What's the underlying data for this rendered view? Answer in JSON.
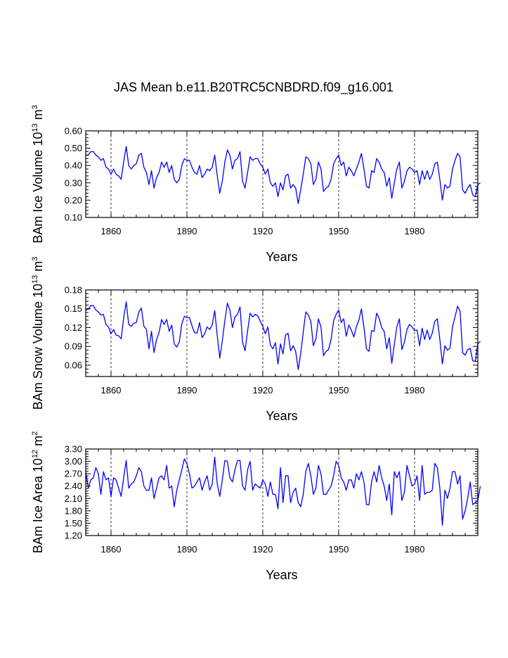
{
  "title": "JAS Mean b.e11.B20TRC5CNBDRD.f09_g16.001",
  "line_color": "#0000ff",
  "chart_data": [
    {
      "type": "line",
      "title": "",
      "xlabel": "Years",
      "ylabel_main": "BAm Ice Volume 10",
      "ylabel_sup": "13",
      "ylabel_unit": "m",
      "ylabel_unit_sup": "3",
      "xlim": [
        1850,
        2005
      ],
      "ylim": [
        0.1,
        0.6
      ],
      "xticks": [
        1860,
        1890,
        1920,
        1950,
        1980
      ],
      "xtick_labels": [
        "1860",
        "1890",
        "1920",
        "1950",
        "1980"
      ],
      "yticks": [
        0.1,
        0.2,
        0.3,
        0.4,
        0.5,
        0.6
      ],
      "ytick_labels": [
        "0.10",
        "0.20",
        "0.30",
        "0.40",
        "0.50",
        "0.60"
      ],
      "x_start": 1850,
      "values": [
        0.46,
        0.46,
        0.48,
        0.48,
        0.46,
        0.45,
        0.43,
        0.44,
        0.39,
        0.38,
        0.35,
        0.38,
        0.35,
        0.34,
        0.32,
        0.42,
        0.51,
        0.4,
        0.38,
        0.4,
        0.41,
        0.46,
        0.47,
        0.39,
        0.36,
        0.29,
        0.37,
        0.27,
        0.33,
        0.36,
        0.42,
        0.39,
        0.42,
        0.36,
        0.4,
        0.32,
        0.3,
        0.32,
        0.4,
        0.44,
        0.43,
        0.43,
        0.39,
        0.36,
        0.35,
        0.4,
        0.33,
        0.35,
        0.38,
        0.37,
        0.39,
        0.46,
        0.34,
        0.24,
        0.31,
        0.42,
        0.49,
        0.46,
        0.38,
        0.43,
        0.44,
        0.48,
        0.31,
        0.27,
        0.36,
        0.45,
        0.43,
        0.44,
        0.44,
        0.41,
        0.39,
        0.35,
        0.38,
        0.3,
        0.28,
        0.3,
        0.22,
        0.3,
        0.26,
        0.34,
        0.35,
        0.27,
        0.29,
        0.27,
        0.18,
        0.26,
        0.35,
        0.45,
        0.44,
        0.41,
        0.29,
        0.32,
        0.42,
        0.38,
        0.25,
        0.27,
        0.28,
        0.32,
        0.41,
        0.44,
        0.46,
        0.4,
        0.42,
        0.34,
        0.39,
        0.37,
        0.34,
        0.38,
        0.42,
        0.47,
        0.38,
        0.28,
        0.27,
        0.37,
        0.36,
        0.44,
        0.42,
        0.38,
        0.36,
        0.28,
        0.33,
        0.21,
        0.3,
        0.38,
        0.42,
        0.27,
        0.31,
        0.37,
        0.39,
        0.38,
        0.36,
        0.37,
        0.29,
        0.37,
        0.32,
        0.37,
        0.32,
        0.35,
        0.41,
        0.42,
        0.32,
        0.2,
        0.29,
        0.27,
        0.28,
        0.38,
        0.43,
        0.47,
        0.45,
        0.26,
        0.24,
        0.27,
        0.29,
        0.23,
        0.22,
        0.29,
        0.3
      ]
    },
    {
      "type": "line",
      "title": "",
      "xlabel": "Years",
      "ylabel_main": "BAm Snow Volume 10",
      "ylabel_sup": "13",
      "ylabel_unit": "m",
      "ylabel_unit_sup": "3",
      "xlim": [
        1850,
        2005
      ],
      "ylim": [
        0.042,
        0.18
      ],
      "xticks": [
        1860,
        1890,
        1920,
        1950,
        1980
      ],
      "xtick_labels": [
        "1860",
        "1890",
        "1920",
        "1950",
        "1980"
      ],
      "yticks": [
        0.06,
        0.09,
        0.12,
        0.15,
        0.18
      ],
      "ytick_labels": [
        "0.06",
        "0.09",
        "0.12",
        "0.15",
        "0.18"
      ],
      "x_start": 1850,
      "values": [
        0.148,
        0.149,
        0.155,
        0.155,
        0.148,
        0.145,
        0.14,
        0.141,
        0.125,
        0.121,
        0.11,
        0.117,
        0.108,
        0.107,
        0.102,
        0.135,
        0.161,
        0.125,
        0.122,
        0.127,
        0.128,
        0.145,
        0.151,
        0.122,
        0.117,
        0.086,
        0.114,
        0.08,
        0.101,
        0.112,
        0.133,
        0.125,
        0.133,
        0.114,
        0.124,
        0.094,
        0.089,
        0.097,
        0.126,
        0.138,
        0.136,
        0.136,
        0.123,
        0.112,
        0.111,
        0.128,
        0.104,
        0.11,
        0.121,
        0.117,
        0.124,
        0.147,
        0.107,
        0.071,
        0.099,
        0.131,
        0.159,
        0.148,
        0.12,
        0.137,
        0.141,
        0.153,
        0.097,
        0.083,
        0.115,
        0.143,
        0.137,
        0.141,
        0.139,
        0.13,
        0.122,
        0.11,
        0.121,
        0.092,
        0.086,
        0.096,
        0.062,
        0.094,
        0.078,
        0.108,
        0.111,
        0.083,
        0.091,
        0.082,
        0.053,
        0.079,
        0.113,
        0.145,
        0.14,
        0.13,
        0.091,
        0.102,
        0.134,
        0.121,
        0.075,
        0.082,
        0.085,
        0.101,
        0.131,
        0.141,
        0.148,
        0.128,
        0.134,
        0.106,
        0.124,
        0.116,
        0.105,
        0.121,
        0.132,
        0.15,
        0.12,
        0.086,
        0.082,
        0.115,
        0.114,
        0.143,
        0.135,
        0.12,
        0.114,
        0.086,
        0.104,
        0.063,
        0.093,
        0.121,
        0.134,
        0.085,
        0.097,
        0.117,
        0.125,
        0.121,
        0.115,
        0.116,
        0.091,
        0.119,
        0.101,
        0.116,
        0.101,
        0.111,
        0.13,
        0.134,
        0.101,
        0.062,
        0.091,
        0.084,
        0.087,
        0.121,
        0.137,
        0.154,
        0.146,
        0.08,
        0.076,
        0.085,
        0.087,
        0.067,
        0.066,
        0.094,
        0.098
      ]
    },
    {
      "type": "line",
      "title": "",
      "xlabel": "Years",
      "ylabel_main": "BAm Ice Area 10",
      "ylabel_sup": "12",
      "ylabel_unit": "m",
      "ylabel_unit_sup": "2",
      "xlim": [
        1850,
        2005
      ],
      "ylim": [
        1.2,
        3.3
      ],
      "xticks": [
        1860,
        1890,
        1920,
        1950,
        1980
      ],
      "xtick_labels": [
        "1860",
        "1890",
        "1920",
        "1950",
        "1980"
      ],
      "yticks": [
        1.2,
        1.5,
        1.8,
        2.1,
        2.4,
        2.7,
        3.0,
        3.3
      ],
      "ytick_labels": [
        "1.20",
        "1.50",
        "1.80",
        "2.10",
        "2.40",
        "2.70",
        "3.00",
        "3.30"
      ],
      "x_start": 1850,
      "values": [
        2.75,
        2.35,
        2.55,
        2.6,
        2.85,
        2.7,
        2.2,
        2.75,
        2.55,
        2.6,
        2.15,
        2.6,
        2.55,
        2.35,
        2.15,
        2.6,
        3.02,
        2.35,
        2.45,
        2.5,
        2.65,
        2.85,
        2.75,
        2.4,
        2.3,
        2.3,
        2.6,
        2.1,
        2.35,
        2.6,
        2.65,
        2.55,
        2.9,
        2.35,
        2.4,
        1.9,
        2.3,
        2.55,
        2.8,
        3.06,
        2.95,
        2.7,
        2.35,
        2.4,
        2.5,
        2.6,
        2.3,
        2.5,
        2.65,
        2.3,
        2.45,
        3.1,
        2.45,
        2.15,
        2.55,
        3.02,
        3.0,
        2.6,
        2.5,
        2.8,
        3.02,
        3.02,
        2.4,
        2.3,
        2.8,
        3.0,
        2.3,
        2.45,
        2.4,
        2.35,
        2.55,
        2.45,
        2.15,
        2.5,
        2.2,
        2.2,
        1.85,
        2.85,
        2.0,
        2.65,
        2.65,
        2.0,
        2.25,
        2.35,
        2.0,
        1.9,
        2.2,
        2.75,
        2.95,
        2.65,
        2.2,
        2.35,
        2.9,
        2.7,
        2.2,
        2.2,
        2.3,
        2.4,
        2.65,
        3.0,
        2.9,
        2.6,
        2.5,
        2.3,
        2.55,
        2.55,
        2.35,
        2.7,
        2.55,
        2.75,
        2.5,
        1.95,
        1.95,
        2.5,
        2.75,
        2.5,
        2.9,
        2.6,
        2.4,
        2.05,
        2.45,
        1.7,
        2.75,
        2.6,
        2.75,
        2.05,
        2.25,
        2.9,
        2.65,
        2.4,
        2.45,
        2.65,
        2.05,
        2.9,
        2.2,
        2.25,
        2.25,
        2.3,
        2.95,
        2.85,
        2.35,
        1.45,
        2.3,
        2.1,
        2.35,
        2.75,
        2.75,
        2.45,
        2.65,
        1.6,
        1.8,
        2.1,
        2.5,
        1.95,
        2.0,
        2.05,
        2.4
      ]
    }
  ]
}
